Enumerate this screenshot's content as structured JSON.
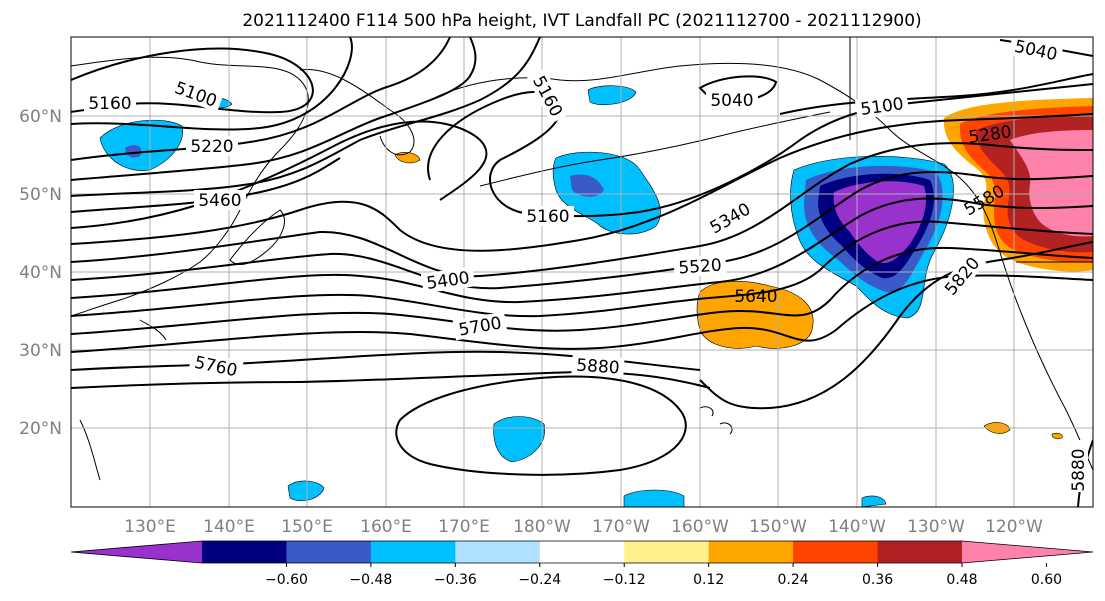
{
  "title": "2021112400 F114 500 hPa height, IVT Landfall PC (2021112700 - 2021112900)",
  "map": {
    "lat_labels": [
      "60°N",
      "50°N",
      "40°N",
      "30°N",
      "20°N"
    ],
    "lon_labels": [
      "130°E",
      "140°E",
      "150°E",
      "160°E",
      "170°E",
      "180°W",
      "170°W",
      "160°W",
      "150°W",
      "140°W",
      "130°W",
      "120°W"
    ],
    "contour_labels": [
      "5160",
      "5100",
      "5220",
      "5460",
      "5160",
      "5040",
      "5100",
      "5040",
      "5280",
      "5160",
      "5340",
      "5400",
      "5520",
      "5640",
      "5700",
      "5580",
      "5820",
      "5760",
      "5880",
      "5880"
    ]
  },
  "colorbar": {
    "colors": [
      "#9932cc",
      "#000080",
      "#3a5bc7",
      "#00bfff",
      "#b0e0ff",
      "#ffffff",
      "#fff08a",
      "#ffa500",
      "#ff4500",
      "#b22222",
      "#ff82ab"
    ],
    "tick_labels": [
      "−0.60",
      "−0.48",
      "−0.36",
      "−0.24",
      "−0.12",
      "0.12",
      "0.24",
      "0.36",
      "0.48",
      "0.60"
    ]
  }
}
